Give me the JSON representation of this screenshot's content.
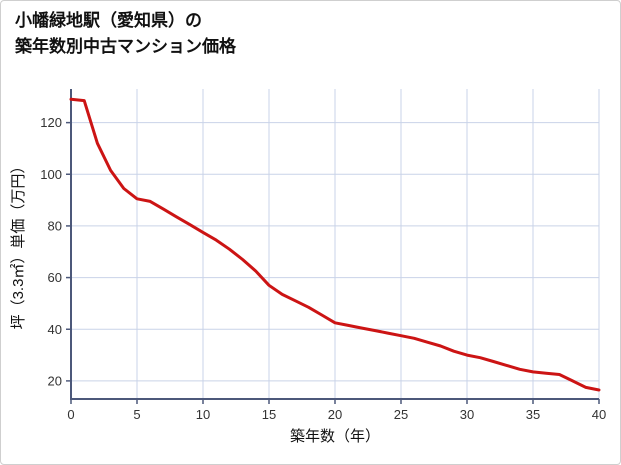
{
  "chart_data": {
    "type": "line",
    "title_lines": [
      "小幡緑地駅（愛知県）の",
      "築年数別中古マンション価格"
    ],
    "xlabel": "築年数（年）",
    "ylabel": "坪（3.3㎡）単価（万円）",
    "x": [
      0,
      1,
      2,
      3,
      4,
      5,
      6,
      7,
      8,
      9,
      10,
      11,
      12,
      13,
      14,
      15,
      16,
      17,
      18,
      19,
      20,
      21,
      22,
      23,
      24,
      25,
      26,
      27,
      28,
      29,
      30,
      31,
      32,
      33,
      34,
      35,
      36,
      37,
      38,
      39,
      40
    ],
    "values": [
      129,
      128.5,
      112,
      101.5,
      94.5,
      90.5,
      89.5,
      86.5,
      83.5,
      80.5,
      77.5,
      74.5,
      71,
      67,
      62.5,
      57,
      53.5,
      51,
      48.5,
      45.5,
      42.5,
      41.5,
      40.5,
      39.5,
      38.5,
      37.5,
      36.5,
      35,
      33.5,
      31.5,
      30,
      29,
      27.5,
      26,
      24.5,
      23.5,
      23,
      22.5,
      20,
      17.5,
      16.5
    ],
    "xlim": [
      0,
      40
    ],
    "ylim": [
      13,
      133
    ],
    "xticks": [
      0,
      5,
      10,
      15,
      20,
      25,
      30,
      35,
      40
    ],
    "yticks": [
      20,
      40,
      60,
      80,
      100,
      120
    ],
    "grid": true,
    "legend": "none",
    "colors": {
      "line": "#cc1414",
      "grid": "#c9d3e8",
      "axis": "#4c587a",
      "tick_label": "#333333",
      "label_text": "#111111"
    }
  }
}
